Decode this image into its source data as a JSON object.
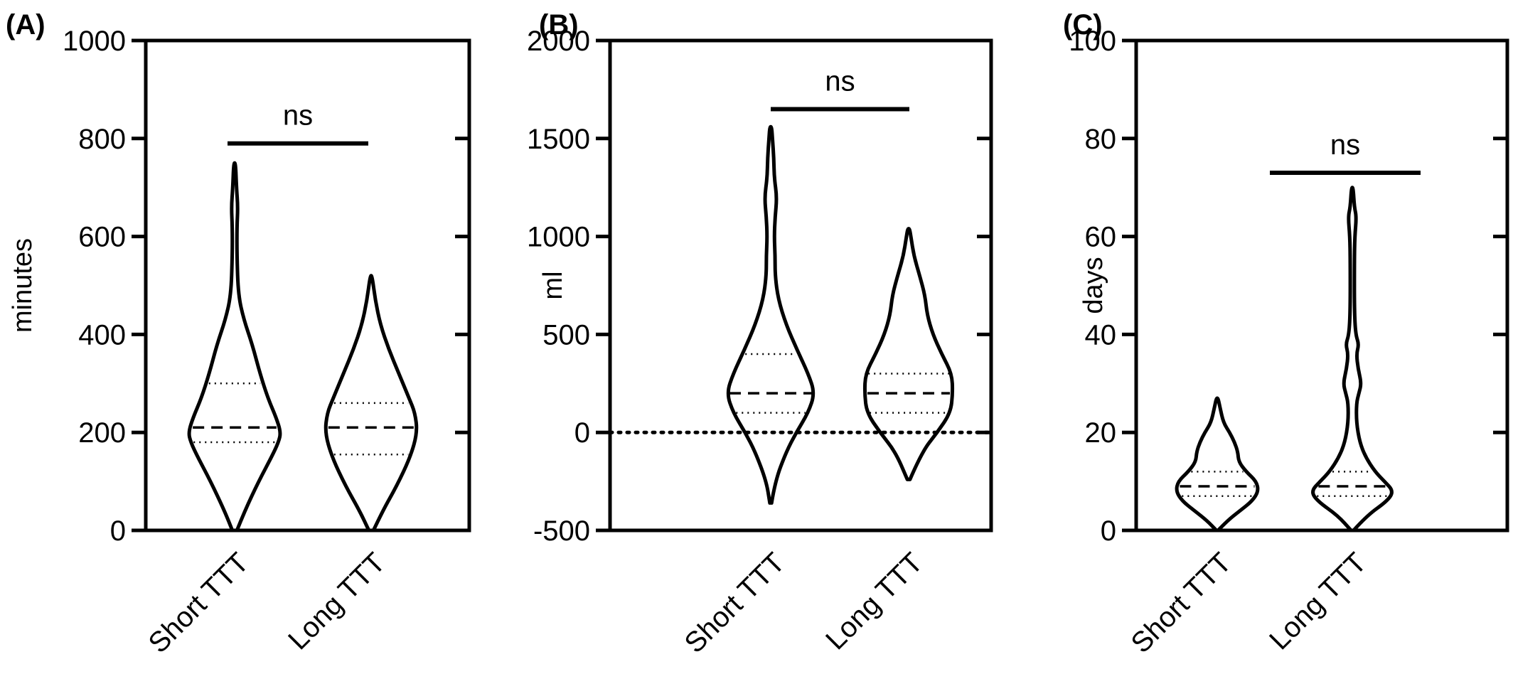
{
  "figure": {
    "panels": [
      {
        "label": "(A)",
        "ylabel": "minutes",
        "yticks": [
          "0",
          "200",
          "400",
          "600",
          "800",
          "1000"
        ],
        "ytick_values": [
          0,
          200,
          400,
          600,
          800,
          1000
        ],
        "categories": [
          "Short TTT",
          "Long TTT"
        ],
        "significance": "ns"
      },
      {
        "label": "(B)",
        "ylabel": "ml",
        "yticks": [
          "-500",
          "0",
          "500",
          "1000",
          "1500",
          "2000"
        ],
        "ytick_values": [
          -500,
          0,
          500,
          1000,
          1500,
          2000
        ],
        "categories": [
          "Short TTT",
          "Long TTT"
        ],
        "significance": "ns"
      },
      {
        "label": "(C)",
        "ylabel": "days",
        "yticks": [
          "0",
          "20",
          "40",
          "60",
          "80",
          "100"
        ],
        "ytick_values": [
          0,
          20,
          40,
          60,
          80,
          100
        ],
        "categories": [
          "Short TTT",
          "Long TTT"
        ],
        "significance": "ns"
      }
    ]
  },
  "chart_data": [
    {
      "type": "violin",
      "title": "",
      "xlabel": "",
      "ylabel": "minutes",
      "ylim": [
        0,
        1000
      ],
      "grid": false,
      "categories": [
        "Short TTT",
        "Long TTT"
      ],
      "violins": [
        {
          "category": "Short TTT",
          "min": 0,
          "max": 750,
          "q1": 180,
          "median": 210,
          "q3": 300,
          "profile": [
            [
              0,
              0.05
            ],
            [
              40,
              0.22
            ],
            [
              100,
              0.52
            ],
            [
              150,
              0.8
            ],
            [
              180,
              0.95
            ],
            [
              200,
              1.0
            ],
            [
              230,
              0.9
            ],
            [
              270,
              0.72
            ],
            [
              320,
              0.55
            ],
            [
              380,
              0.38
            ],
            [
              430,
              0.2
            ],
            [
              480,
              0.08
            ],
            [
              560,
              0.05
            ],
            [
              620,
              0.05
            ],
            [
              660,
              0.07
            ],
            [
              700,
              0.04
            ],
            [
              750,
              0.02
            ]
          ]
        },
        {
          "category": "Long TTT",
          "min": 0,
          "max": 520,
          "q1": 155,
          "median": 210,
          "q3": 260,
          "profile": [
            [
              0,
              0.05
            ],
            [
              40,
              0.25
            ],
            [
              90,
              0.55
            ],
            [
              150,
              0.85
            ],
            [
              200,
              1.0
            ],
            [
              240,
              0.95
            ],
            [
              270,
              0.82
            ],
            [
              320,
              0.6
            ],
            [
              370,
              0.38
            ],
            [
              420,
              0.2
            ],
            [
              470,
              0.09
            ],
            [
              520,
              0.02
            ]
          ]
        }
      ],
      "significance": {
        "label": "ns",
        "y": 790,
        "between": [
          "Short TTT",
          "Long TTT"
        ]
      }
    },
    {
      "type": "violin",
      "title": "",
      "xlabel": "",
      "ylabel": "ml",
      "ylim": [
        -500,
        2000
      ],
      "grid": false,
      "reference_line": {
        "y": 0,
        "style": "dotted"
      },
      "categories": [
        "Short TTT",
        "Long TTT"
      ],
      "violins": [
        {
          "category": "Short TTT",
          "min": -360,
          "max": 1560,
          "q1": 100,
          "median": 200,
          "q3": 400,
          "profile": [
            [
              -360,
              0.02
            ],
            [
              -250,
              0.1
            ],
            [
              -100,
              0.35
            ],
            [
              0,
              0.58
            ],
            [
              100,
              0.85
            ],
            [
              200,
              1.0
            ],
            [
              300,
              0.85
            ],
            [
              420,
              0.6
            ],
            [
              550,
              0.35
            ],
            [
              680,
              0.17
            ],
            [
              800,
              0.1
            ],
            [
              900,
              0.1
            ],
            [
              1000,
              0.08
            ],
            [
              1100,
              0.1
            ],
            [
              1200,
              0.14
            ],
            [
              1300,
              0.08
            ],
            [
              1400,
              0.07
            ],
            [
              1500,
              0.04
            ],
            [
              1560,
              0.02
            ]
          ]
        },
        {
          "category": "Long TTT",
          "min": -240,
          "max": 1040,
          "q1": 100,
          "median": 200,
          "q3": 300,
          "profile": [
            [
              -240,
              0.03
            ],
            [
              -100,
              0.3
            ],
            [
              0,
              0.65
            ],
            [
              100,
              0.95
            ],
            [
              200,
              1.0
            ],
            [
              300,
              0.98
            ],
            [
              400,
              0.75
            ],
            [
              500,
              0.55
            ],
            [
              600,
              0.42
            ],
            [
              700,
              0.37
            ],
            [
              800,
              0.25
            ],
            [
              900,
              0.12
            ],
            [
              1000,
              0.05
            ],
            [
              1040,
              0.02
            ]
          ]
        }
      ],
      "significance": {
        "label": "ns",
        "y": 1650,
        "between": [
          "Short TTT",
          "Long TTT"
        ]
      }
    },
    {
      "type": "violin",
      "title": "",
      "xlabel": "",
      "ylabel": "days",
      "ylim": [
        0,
        100
      ],
      "grid": false,
      "categories": [
        "Short TTT",
        "Long TTT"
      ],
      "violins": [
        {
          "category": "Short TTT",
          "min": 0,
          "max": 27,
          "q1": 7,
          "median": 9,
          "q3": 12,
          "profile": [
            [
              0,
              0.02
            ],
            [
              2,
              0.25
            ],
            [
              4,
              0.55
            ],
            [
              6,
              0.85
            ],
            [
              8,
              1.0
            ],
            [
              10,
              0.95
            ],
            [
              12,
              0.7
            ],
            [
              14,
              0.52
            ],
            [
              16,
              0.5
            ],
            [
              18,
              0.42
            ],
            [
              20,
              0.3
            ],
            [
              22,
              0.15
            ],
            [
              25,
              0.07
            ],
            [
              27,
              0.02
            ]
          ]
        },
        {
          "category": "Long TTT",
          "min": 0,
          "max": 70,
          "q1": 7,
          "median": 9,
          "q3": 12,
          "profile": [
            [
              0,
              0.03
            ],
            [
              3,
              0.35
            ],
            [
              6,
              0.85
            ],
            [
              8,
              1.0
            ],
            [
              10,
              0.78
            ],
            [
              12,
              0.55
            ],
            [
              15,
              0.32
            ],
            [
              18,
              0.18
            ],
            [
              22,
              0.1
            ],
            [
              26,
              0.1
            ],
            [
              28,
              0.16
            ],
            [
              30,
              0.22
            ],
            [
              33,
              0.14
            ],
            [
              36,
              0.1
            ],
            [
              38,
              0.16
            ],
            [
              40,
              0.08
            ],
            [
              45,
              0.05
            ],
            [
              55,
              0.05
            ],
            [
              60,
              0.06
            ],
            [
              64,
              0.1
            ],
            [
              66,
              0.05
            ],
            [
              70,
              0.02
            ]
          ]
        }
      ],
      "significance": {
        "label": "ns",
        "y": 73,
        "between": [
          "Short TTT",
          "Long TTT"
        ]
      }
    }
  ]
}
